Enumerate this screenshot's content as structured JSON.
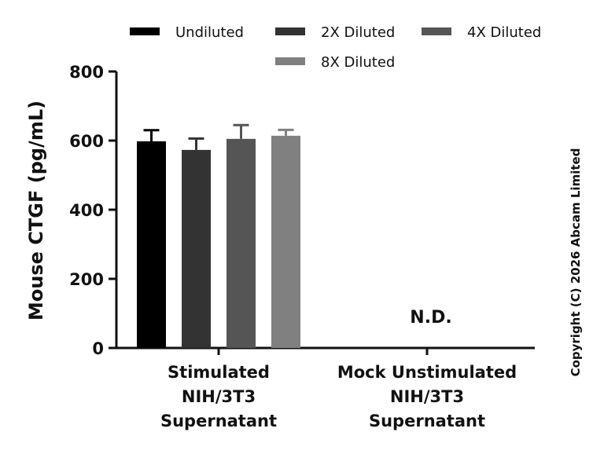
{
  "chart_data": {
    "type": "bar",
    "ylabel": "Mouse CTGF (pg/mL)",
    "ylim": [
      0,
      800
    ],
    "yticks": [
      0,
      200,
      400,
      600,
      800
    ],
    "categories": [
      [
        "Stimulated",
        "NIH/3T3",
        "Supernatant"
      ],
      [
        "Mock Unstimulated",
        "NIH/3T3",
        "Supernatant"
      ]
    ],
    "series": [
      {
        "name": "Undiluted",
        "color": "#000000",
        "values": [
          598,
          null
        ],
        "errors": [
          32,
          null
        ]
      },
      {
        "name": "2X Diluted",
        "color": "#333333",
        "values": [
          573,
          null
        ],
        "errors": [
          33,
          null
        ]
      },
      {
        "name": "4X Diluted",
        "color": "#555555",
        "values": [
          605,
          null
        ],
        "errors": [
          40,
          null
        ]
      },
      {
        "name": "8X Diluted",
        "color": "#808080",
        "values": [
          614,
          null
        ],
        "errors": [
          17,
          null
        ]
      }
    ],
    "annotations": [
      {
        "category_index": 1,
        "text": "N.D."
      }
    ],
    "legend_position": "top",
    "grid": false
  },
  "copyright": "Copyright (C) 2026 Abcam Limited"
}
